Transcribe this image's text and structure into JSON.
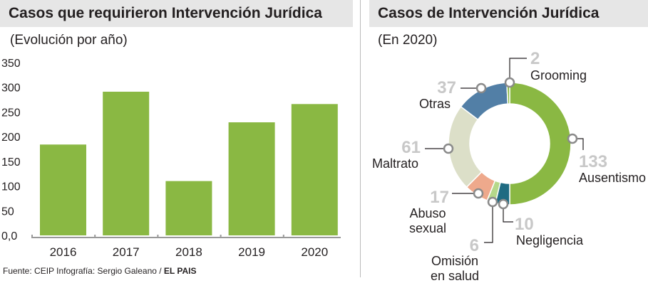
{
  "left": {
    "title": "Casos que requirieron Intervención Jurídica",
    "subtitle": "(Evolución por año)"
  },
  "right": {
    "title": "Casos de Intervención Jurídica",
    "subtitle": "(En 2020)"
  },
  "footer": {
    "source": "Fuente: CEIP Infografía: Sergio Galeano / ",
    "brand": "EL PAIS"
  },
  "chart_data": [
    {
      "type": "bar",
      "title": "Casos que requirieron Intervención Jurídica",
      "subtitle": "(Evolución por año)",
      "categories": [
        "2016",
        "2017",
        "2018",
        "2019",
        "2020"
      ],
      "values": [
        184,
        291,
        110,
        229,
        266
      ],
      "ylim": [
        0,
        350
      ],
      "yticks": [
        "0,0",
        "50",
        "100",
        "150",
        "200",
        "250",
        "300",
        "350"
      ],
      "color": "#8ab843"
    },
    {
      "type": "pie",
      "donut": true,
      "title": "Casos de Intervención Jurídica",
      "subtitle": "(En 2020)",
      "slices": [
        {
          "label": "Ausentismo",
          "value": 133,
          "color": "#8ab843"
        },
        {
          "label": "Negligencia",
          "value": 10,
          "color": "#1f6b82"
        },
        {
          "label": "Omisión en salud",
          "value": 6,
          "color": "#b5d88a"
        },
        {
          "label": "Abuso sexual",
          "value": 17,
          "color": "#eea98c"
        },
        {
          "label": "Maltrato",
          "value": 61,
          "color": "#dcdfc8"
        },
        {
          "label": "Otras",
          "value": 37,
          "color": "#527fa6"
        },
        {
          "label": "Grooming",
          "value": 2,
          "color": "#8ab843"
        }
      ]
    }
  ]
}
